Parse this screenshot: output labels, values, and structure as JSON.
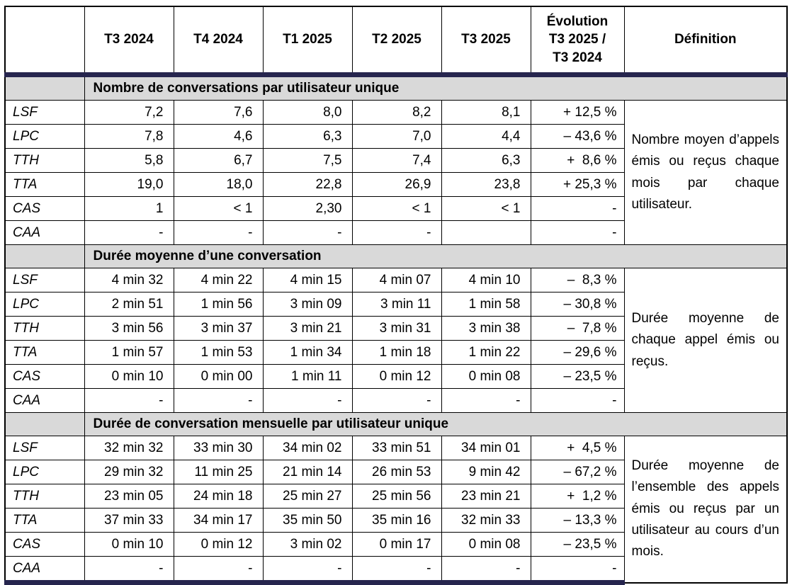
{
  "colors": {
    "accent_bar": "#26254e",
    "section_background": "#d9d9d9",
    "border": "#000000",
    "text": "#000000"
  },
  "header": {
    "corner": "",
    "cols": [
      "T3 2024",
      "T4 2024",
      "T1 2025",
      "T2 2025",
      "T3 2025"
    ],
    "evolution_lines": [
      "Évolution",
      "T3 2025 /",
      "T3 2024"
    ],
    "definition": "Définition"
  },
  "sections": [
    {
      "title": "Nombre de conversations par utilisateur unique",
      "definition": "Nombre moyen d’appels émis ou reçus chaque mois par chaque utilisateur.",
      "rows": [
        {
          "label": "LSF",
          "values": [
            "7,2",
            "7,6",
            "8,0",
            "8,2",
            "8,1",
            "+ 12,5 %"
          ]
        },
        {
          "label": "LPC",
          "values": [
            "7,8",
            "4,6",
            "6,3",
            "7,0",
            "4,4",
            "– 43,6 %"
          ]
        },
        {
          "label": "TTH",
          "values": [
            "5,8",
            "6,7",
            "7,5",
            "7,4",
            "6,3",
            "+  8,6 %"
          ]
        },
        {
          "label": "TTA",
          "values": [
            "19,0",
            "18,0",
            "22,8",
            "26,9",
            "23,8",
            "+ 25,3 %"
          ]
        },
        {
          "label": "CAS",
          "values": [
            "1",
            "< 1",
            "2,30",
            "< 1",
            "< 1",
            "-"
          ]
        },
        {
          "label": "CAA",
          "values": [
            "-",
            "-",
            "-",
            "-",
            "",
            "-"
          ]
        }
      ]
    },
    {
      "title": "Durée moyenne d’une conversation",
      "definition": "Durée moyenne de chaque appel émis ou reçus.",
      "rows": [
        {
          "label": "LSF",
          "values": [
            "4 min 32",
            "4 min 22",
            "4 min 15",
            "4 min 07",
            "4 min 10",
            "–  8,3 %"
          ]
        },
        {
          "label": "LPC",
          "values": [
            "2 min 51",
            "1 min 56",
            "3 min 09",
            "3 min 11",
            "1 min 58",
            "– 30,8 %"
          ]
        },
        {
          "label": "TTH",
          "values": [
            "3 min 56",
            "3 min 37",
            "3 min 21",
            "3 min 31",
            "3 min 38",
            "–  7,8 %"
          ]
        },
        {
          "label": "TTA",
          "values": [
            "1 min 57",
            "1 min 53",
            "1 min 34",
            "1 min 18",
            "1 min 22",
            "– 29,6 %"
          ]
        },
        {
          "label": "CAS",
          "values": [
            "0 min 10",
            "0 min 00",
            "1 min 11",
            "0 min 12",
            "0 min 08",
            "– 23,5 %"
          ]
        },
        {
          "label": "CAA",
          "values": [
            "-",
            "-",
            "-",
            "-",
            "-",
            "-"
          ]
        }
      ]
    },
    {
      "title": "Durée de conversation mensuelle par utilisateur unique",
      "definition": "Durée moyenne de l’ensemble des appels émis ou reçus par un utilisateur au cours d’un mois.",
      "rows": [
        {
          "label": "LSF",
          "values": [
            "32 min 32",
            "33 min 30",
            "34 min 02",
            "33 min 51",
            "34 min 01",
            "+  4,5 %"
          ]
        },
        {
          "label": "LPC",
          "values": [
            "29 min 32",
            "11 min 25",
            "21 min 14",
            "26 min 53",
            "9 min 42",
            "– 67,2 %"
          ]
        },
        {
          "label": "TTH",
          "values": [
            "23 min 05",
            "24 min 18",
            "25 min 27",
            "25 min 56",
            "23 min 21",
            "+  1,2 %"
          ]
        },
        {
          "label": "TTA",
          "values": [
            "37 min 33",
            "34 min 17",
            "35 min 50",
            "35 min 16",
            "32 min 33",
            "– 13,3 %"
          ]
        },
        {
          "label": "CAS",
          "values": [
            "0 min 10",
            "0 min 12",
            "3 min 02",
            "0 min 17",
            "0 min 08",
            "– 23,5 %"
          ]
        },
        {
          "label": "CAA",
          "values": [
            "-",
            "-",
            "-",
            "-",
            "-",
            "-"
          ]
        }
      ]
    }
  ]
}
